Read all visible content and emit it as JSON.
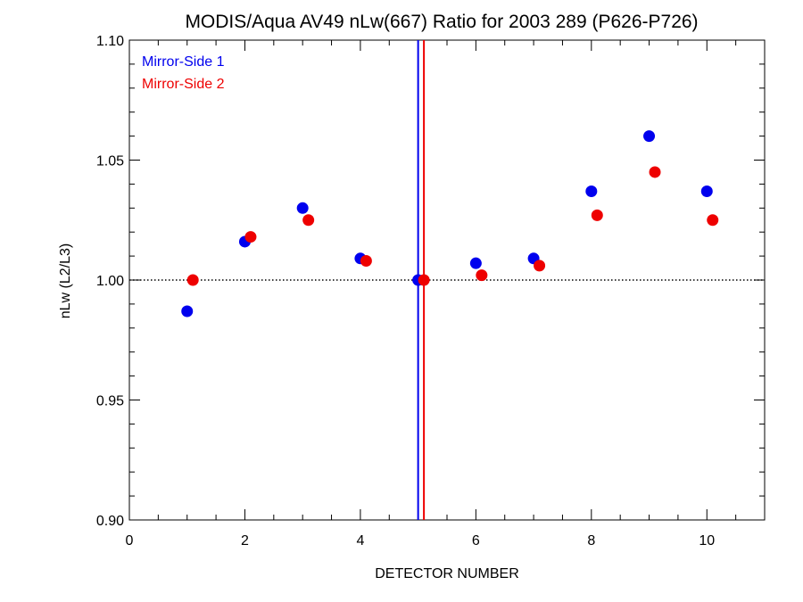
{
  "chart_data": {
    "type": "scatter",
    "title": "MODIS/Aqua AV49 nLw(667) Ratio for 2003 289 (P626-P726)",
    "xlabel": "DETECTOR NUMBER",
    "ylabel": "nLw (L2/L3)",
    "xlim": [
      0,
      11
    ],
    "ylim": [
      0.9,
      1.1
    ],
    "x_ticks": [
      0,
      2,
      4,
      6,
      8,
      10
    ],
    "x_tick_labels": [
      "0",
      "2",
      "4",
      "6",
      "8",
      "10"
    ],
    "x_minor_step": 0.5,
    "y_ticks": [
      0.9,
      0.95,
      1.0,
      1.05,
      1.1
    ],
    "y_tick_labels": [
      "0.90",
      "0.95",
      "1.00",
      "1.05",
      "1.10"
    ],
    "y_minor_step": 0.01,
    "grid": false,
    "legend_position": "top-left",
    "reference_line_y": 1.0,
    "vertical_lines": [
      {
        "x": 5.0,
        "color": "#0000ee"
      },
      {
        "x": 5.1,
        "color": "#ee0000"
      }
    ],
    "series": [
      {
        "name": "Mirror-Side 1",
        "color": "#0000ee",
        "x": [
          1,
          2,
          3,
          4,
          5,
          6,
          7,
          8,
          9,
          10
        ],
        "y": [
          0.987,
          1.016,
          1.03,
          1.009,
          1.0,
          1.007,
          1.009,
          1.037,
          1.06,
          1.037
        ]
      },
      {
        "name": "Mirror-Side 2",
        "color": "#ee0000",
        "x": [
          1.1,
          2.1,
          3.1,
          4.1,
          5.1,
          6.1,
          7.1,
          8.1,
          9.1,
          10.1
        ],
        "y": [
          1.0,
          1.018,
          1.025,
          1.008,
          1.0,
          1.002,
          1.006,
          1.027,
          1.045,
          1.025
        ]
      }
    ]
  }
}
